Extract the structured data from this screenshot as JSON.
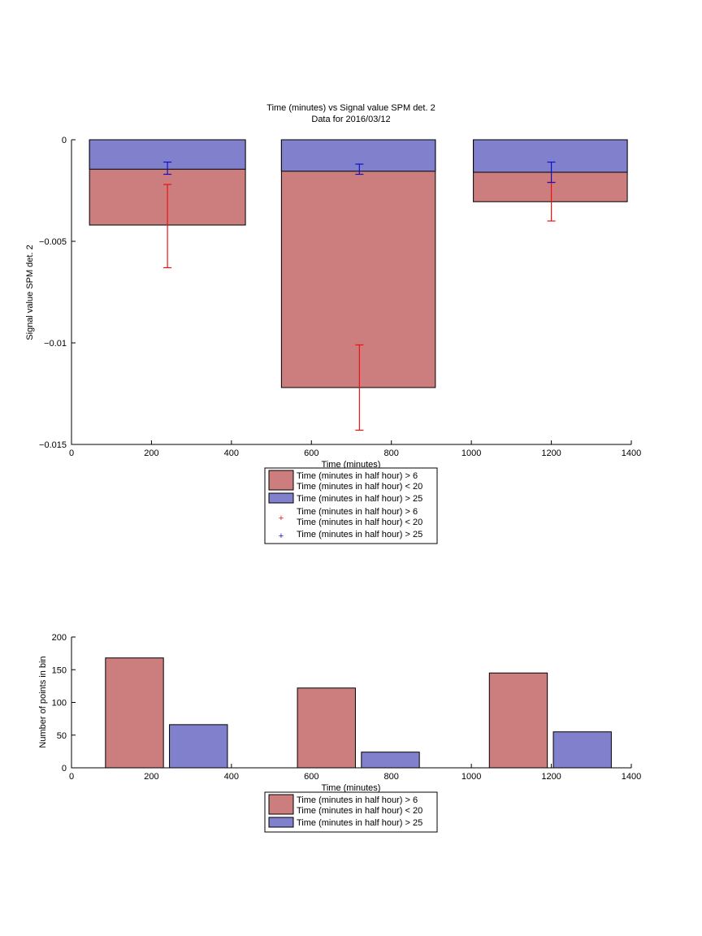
{
  "colors": {
    "red_fill": "#cc7d7d",
    "blue_fill": "#8080cc",
    "red_err": "#ee1111",
    "blue_err": "#1111cc"
  },
  "chart_data": [
    {
      "type": "bar",
      "title": "Time (minutes) vs Signal value SPM det. 2",
      "subtitle": "Data for 2016/03/12",
      "xlabel": "Time (minutes)",
      "ylabel": "Signal value SPM det. 2",
      "xlim": [
        0,
        1400
      ],
      "ylim": [
        -0.015,
        0
      ],
      "x_ticks": [
        "0",
        "200",
        "400",
        "600",
        "800",
        "1000",
        "1200",
        "1400"
      ],
      "y_ticks": [
        "0",
        "-0.005",
        "-0.01",
        "-0.015"
      ],
      "grid": false,
      "legend_position": "below",
      "bars": [
        {
          "x_start": 45,
          "x_end": 435,
          "red_value": -0.0042,
          "blue_value": -0.00145
        },
        {
          "x_start": 525,
          "x_end": 910,
          "red_value": -0.0122,
          "blue_value": -0.00155
        },
        {
          "x_start": 1005,
          "x_end": 1390,
          "red_value": -0.00305,
          "blue_value": -0.0016
        }
      ],
      "error_bars": [
        {
          "name": "Time (minutes in half hour) > 6 Time (minutes in half hour) < 20",
          "color": "red",
          "x": [
            240,
            720,
            1200
          ],
          "low": [
            -0.0063,
            -0.0143,
            -0.004
          ],
          "high": [
            -0.0022,
            -0.0101,
            -0.0021
          ]
        },
        {
          "name": "Time (minutes in half hour) > 25",
          "color": "blue",
          "x": [
            240,
            720,
            1200
          ],
          "low": [
            -0.0017,
            -0.0017,
            -0.0021
          ],
          "high": [
            -0.0011,
            -0.0012,
            -0.0011
          ]
        }
      ],
      "legend": [
        {
          "kind": "patch",
          "color": "red",
          "lines": [
            "Time (minutes in half hour) > 6",
            "Time (minutes in half hour) < 20"
          ]
        },
        {
          "kind": "patch",
          "color": "blue",
          "lines": [
            "Time (minutes in half hour) > 25"
          ]
        },
        {
          "kind": "marker",
          "color": "red",
          "lines": [
            "Time (minutes in half hour) > 6",
            "Time (minutes in half hour) < 20"
          ]
        },
        {
          "kind": "marker",
          "color": "blue",
          "lines": [
            "Time (minutes in half hour) > 25"
          ]
        }
      ]
    },
    {
      "type": "bar",
      "xlabel": "Time (minutes)",
      "ylabel": "Number of points in bin",
      "xlim": [
        0,
        1400
      ],
      "ylim": [
        0,
        200
      ],
      "x_ticks": [
        "0",
        "200",
        "400",
        "600",
        "800",
        "1000",
        "1200",
        "1400"
      ],
      "y_ticks": [
        "0",
        "50",
        "100",
        "150",
        "200"
      ],
      "grid": false,
      "legend_position": "below",
      "bars": [
        {
          "x_start": 85,
          "x_end": 230,
          "value": 168,
          "color": "red"
        },
        {
          "x_start": 245,
          "x_end": 390,
          "value": 66,
          "color": "blue"
        },
        {
          "x_start": 565,
          "x_end": 710,
          "value": 122,
          "color": "red"
        },
        {
          "x_start": 725,
          "x_end": 870,
          "value": 24,
          "color": "blue"
        },
        {
          "x_start": 1045,
          "x_end": 1190,
          "value": 145,
          "color": "red"
        },
        {
          "x_start": 1205,
          "x_end": 1350,
          "value": 55,
          "color": "blue"
        }
      ],
      "legend": [
        {
          "kind": "patch",
          "color": "red",
          "lines": [
            "Time (minutes in half hour) > 6",
            "Time (minutes in half hour) < 20"
          ]
        },
        {
          "kind": "patch",
          "color": "blue",
          "lines": [
            "Time (minutes in half hour) > 25"
          ]
        }
      ]
    }
  ]
}
